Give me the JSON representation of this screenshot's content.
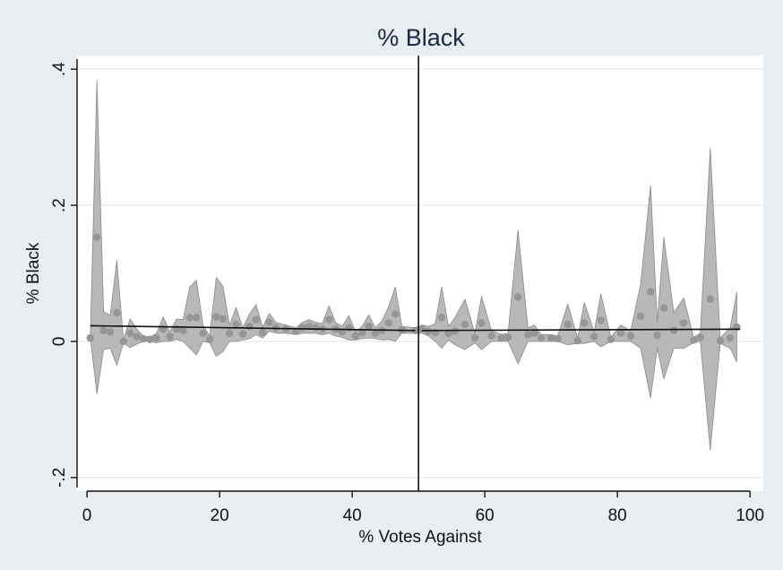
{
  "chart_data": {
    "type": "scatter",
    "title": "% Black",
    "xlabel": "% Votes Against",
    "ylabel": "% Black",
    "xlim": [
      -1.5,
      102
    ],
    "ylim": [
      -0.22,
      0.42
    ],
    "x_ticks": [
      0,
      20,
      40,
      60,
      80,
      100
    ],
    "x_tick_labels": [
      "0",
      "20",
      "40",
      "60",
      "80",
      "100"
    ],
    "y_ticks": [
      -0.2,
      0,
      0.2,
      0.4
    ],
    "y_tick_labels": [
      "-.2",
      "0",
      ".2",
      ".4"
    ],
    "grid": "horizontal",
    "cutoff_x": 50,
    "colors": {
      "band": "#b8b8b8",
      "band_edge": "#8a8a8a",
      "point": "#969696",
      "fit_line": "#111111",
      "cutoff_line": "#111111",
      "grid": "#e9eef1",
      "background": "#e8eef2",
      "plot_bg": "#ffffff"
    },
    "series": [
      {
        "kind": "binned_means_with_ci",
        "points": [
          {
            "x": 0.5,
            "y": 0.005,
            "lo": 0.005,
            "hi": 0.005
          },
          {
            "x": 1.5,
            "y": 0.153,
            "lo": -0.077,
            "hi": 0.383
          },
          {
            "x": 2.5,
            "y": 0.016,
            "lo": -0.012,
            "hi": 0.044
          },
          {
            "x": 3.5,
            "y": 0.014,
            "lo": -0.01,
            "hi": 0.038
          },
          {
            "x": 4.5,
            "y": 0.042,
            "lo": -0.035,
            "hi": 0.119
          },
          {
            "x": 5.5,
            "y": 0.0,
            "lo": -0.002,
            "hi": 0.002
          },
          {
            "x": 6.5,
            "y": 0.012,
            "lo": -0.009,
            "hi": 0.033
          },
          {
            "x": 7.5,
            "y": 0.007,
            "lo": -0.004,
            "hi": 0.018
          },
          {
            "x": 8.5,
            "y": 0.004,
            "lo": 0.0,
            "hi": 0.008
          },
          {
            "x": 9.5,
            "y": 0.003,
            "lo": 0.0,
            "hi": 0.006
          },
          {
            "x": 10.5,
            "y": 0.005,
            "lo": -0.002,
            "hi": 0.012
          },
          {
            "x": 11.5,
            "y": 0.018,
            "lo": 0.0,
            "hi": 0.036
          },
          {
            "x": 12.5,
            "y": 0.007,
            "lo": 0.0,
            "hi": 0.014
          },
          {
            "x": 13.5,
            "y": 0.018,
            "lo": 0.003,
            "hi": 0.033
          },
          {
            "x": 14.5,
            "y": 0.016,
            "lo": 0.0,
            "hi": 0.032
          },
          {
            "x": 15.5,
            "y": 0.035,
            "lo": -0.01,
            "hi": 0.08
          },
          {
            "x": 16.5,
            "y": 0.035,
            "lo": -0.02,
            "hi": 0.09
          },
          {
            "x": 17.5,
            "y": 0.012,
            "lo": 0.0,
            "hi": 0.024
          },
          {
            "x": 18.5,
            "y": 0.003,
            "lo": -0.002,
            "hi": 0.008
          },
          {
            "x": 19.5,
            "y": 0.036,
            "lo": -0.022,
            "hi": 0.094
          },
          {
            "x": 20.5,
            "y": 0.033,
            "lo": -0.015,
            "hi": 0.081
          },
          {
            "x": 21.5,
            "y": 0.012,
            "lo": 0.0,
            "hi": 0.024
          },
          {
            "x": 22.5,
            "y": 0.025,
            "lo": 0.0,
            "hi": 0.05
          },
          {
            "x": 23.5,
            "y": 0.011,
            "lo": 0.002,
            "hi": 0.02
          },
          {
            "x": 24.5,
            "y": 0.022,
            "lo": 0.004,
            "hi": 0.04
          },
          {
            "x": 25.5,
            "y": 0.032,
            "lo": 0.01,
            "hi": 0.054
          },
          {
            "x": 26.5,
            "y": 0.013,
            "lo": 0.005,
            "hi": 0.021
          },
          {
            "x": 27.5,
            "y": 0.028,
            "lo": 0.015,
            "hi": 0.041
          },
          {
            "x": 28.5,
            "y": 0.02,
            "lo": 0.012,
            "hi": 0.028
          },
          {
            "x": 30.0,
            "y": 0.018,
            "lo": 0.012,
            "hi": 0.024
          },
          {
            "x": 31.5,
            "y": 0.015,
            "lo": 0.01,
            "hi": 0.02
          },
          {
            "x": 32.5,
            "y": 0.02,
            "lo": 0.012,
            "hi": 0.028
          },
          {
            "x": 33.5,
            "y": 0.022,
            "lo": 0.012,
            "hi": 0.032
          },
          {
            "x": 34.5,
            "y": 0.02,
            "lo": 0.012,
            "hi": 0.028
          },
          {
            "x": 35.5,
            "y": 0.018,
            "lo": 0.01,
            "hi": 0.026
          },
          {
            "x": 36.5,
            "y": 0.032,
            "lo": 0.012,
            "hi": 0.052
          },
          {
            "x": 37.5,
            "y": 0.018,
            "lo": 0.008,
            "hi": 0.028
          },
          {
            "x": 38.5,
            "y": 0.014,
            "lo": 0.006,
            "hi": 0.022
          },
          {
            "x": 39.5,
            "y": 0.02,
            "lo": 0.002,
            "hi": 0.038
          },
          {
            "x": 40.5,
            "y": 0.008,
            "lo": 0.002,
            "hi": 0.014
          },
          {
            "x": 41.5,
            "y": 0.013,
            "lo": 0.004,
            "hi": 0.022
          },
          {
            "x": 42.5,
            "y": 0.022,
            "lo": 0.005,
            "hi": 0.039
          },
          {
            "x": 43.5,
            "y": 0.012,
            "lo": 0.004,
            "hi": 0.02
          },
          {
            "x": 44.5,
            "y": 0.016,
            "lo": 0.002,
            "hi": 0.03
          },
          {
            "x": 45.5,
            "y": 0.027,
            "lo": 0.003,
            "hi": 0.051
          },
          {
            "x": 46.5,
            "y": 0.04,
            "lo": 0.0,
            "hi": 0.08
          },
          {
            "x": 47.5,
            "y": 0.017,
            "lo": 0.012,
            "hi": 0.022
          },
          {
            "x": 49.5,
            "y": 0.016,
            "lo": 0.012,
            "hi": 0.02
          },
          {
            "x": 50.5,
            "y": 0.018,
            "lo": 0.012,
            "hi": 0.024
          },
          {
            "x": 51.5,
            "y": 0.015,
            "lo": 0.008,
            "hi": 0.022
          },
          {
            "x": 52.5,
            "y": 0.013,
            "lo": 0.0,
            "hi": 0.026
          },
          {
            "x": 53.5,
            "y": 0.035,
            "lo": -0.01,
            "hi": 0.08
          },
          {
            "x": 54.5,
            "y": 0.012,
            "lo": 0.002,
            "hi": 0.022
          },
          {
            "x": 55.5,
            "y": 0.015,
            "lo": -0.005,
            "hi": 0.035
          },
          {
            "x": 57.0,
            "y": 0.025,
            "lo": -0.012,
            "hi": 0.062
          },
          {
            "x": 58.5,
            "y": 0.005,
            "lo": -0.002,
            "hi": 0.012
          },
          {
            "x": 59.5,
            "y": 0.027,
            "lo": -0.012,
            "hi": 0.066
          },
          {
            "x": 61.0,
            "y": 0.008,
            "lo": 0.0,
            "hi": 0.016
          },
          {
            "x": 62.5,
            "y": 0.005,
            "lo": 0.0,
            "hi": 0.01
          },
          {
            "x": 63.5,
            "y": 0.006,
            "lo": 0.0,
            "hi": 0.012
          },
          {
            "x": 65.0,
            "y": 0.065,
            "lo": -0.033,
            "hi": 0.163
          },
          {
            "x": 66.5,
            "y": 0.01,
            "lo": 0.0,
            "hi": 0.02
          },
          {
            "x": 67.5,
            "y": 0.012,
            "lo": 0.0,
            "hi": 0.024
          },
          {
            "x": 68.5,
            "y": 0.005,
            "lo": 0.0,
            "hi": 0.01
          },
          {
            "x": 70.0,
            "y": 0.005,
            "lo": 0.0,
            "hi": 0.01
          },
          {
            "x": 71.0,
            "y": 0.004,
            "lo": 0.0,
            "hi": 0.008
          },
          {
            "x": 72.5,
            "y": 0.025,
            "lo": -0.005,
            "hi": 0.055
          },
          {
            "x": 74.0,
            "y": 0.001,
            "lo": -0.003,
            "hi": 0.005
          },
          {
            "x": 75.0,
            "y": 0.027,
            "lo": -0.003,
            "hi": 0.057
          },
          {
            "x": 76.5,
            "y": 0.007,
            "lo": 0.0,
            "hi": 0.014
          },
          {
            "x": 77.5,
            "y": 0.031,
            "lo": -0.008,
            "hi": 0.07
          },
          {
            "x": 79.0,
            "y": 0.003,
            "lo": 0.0,
            "hi": 0.006
          },
          {
            "x": 80.5,
            "y": 0.012,
            "lo": 0.0,
            "hi": 0.024
          },
          {
            "x": 82.0,
            "y": 0.008,
            "lo": 0.0,
            "hi": 0.016
          },
          {
            "x": 83.5,
            "y": 0.037,
            "lo": -0.01,
            "hi": 0.084
          },
          {
            "x": 85.0,
            "y": 0.073,
            "lo": -0.083,
            "hi": 0.229
          },
          {
            "x": 86.0,
            "y": 0.009,
            "lo": -0.01,
            "hi": 0.028
          },
          {
            "x": 87.0,
            "y": 0.049,
            "lo": -0.055,
            "hi": 0.153
          },
          {
            "x": 88.5,
            "y": 0.016,
            "lo": -0.01,
            "hi": 0.042
          },
          {
            "x": 90.0,
            "y": 0.027,
            "lo": -0.01,
            "hi": 0.064
          },
          {
            "x": 91.5,
            "y": 0.002,
            "lo": -0.002,
            "hi": 0.006
          },
          {
            "x": 92.5,
            "y": 0.006,
            "lo": 0.0,
            "hi": 0.012
          },
          {
            "x": 94.0,
            "y": 0.062,
            "lo": -0.16,
            "hi": 0.284
          },
          {
            "x": 95.5,
            "y": 0.001,
            "lo": -0.003,
            "hi": 0.005
          },
          {
            "x": 97.0,
            "y": 0.005,
            "lo": -0.01,
            "hi": 0.02
          },
          {
            "x": 98.0,
            "y": 0.021,
            "lo": -0.03,
            "hi": 0.072
          }
        ]
      },
      {
        "kind": "linear_fit_left",
        "x": [
          0.5,
          49.5
        ],
        "y": [
          0.023,
          0.016
        ]
      },
      {
        "kind": "linear_fit_right",
        "x": [
          50.5,
          98.5
        ],
        "y": [
          0.016,
          0.018
        ]
      }
    ]
  }
}
